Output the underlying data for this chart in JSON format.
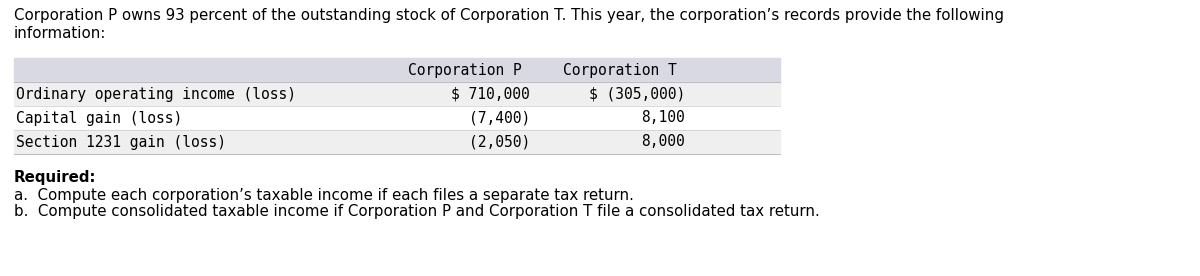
{
  "intro_text_line1": "Corporation P owns 93 percent of the outstanding stock of Corporation T. This year, the corporation’s records provide the following",
  "intro_text_line2": "information:",
  "table_header_col1": "Corporation P",
  "table_header_col2": "Corporation T",
  "table_rows": [
    [
      "Ordinary operating income (loss)",
      "$ 710,000",
      "$ (305,000)"
    ],
    [
      "Capital gain (loss)",
      "(7,400)",
      "8,100"
    ],
    [
      "Section 1231 gain (loss)",
      "(2,050)",
      "8,000"
    ]
  ],
  "header_bg_color": "#d9d9e3",
  "row_bg_even": "#efefef",
  "row_bg_odd": "#ffffff",
  "required_label": "Required:",
  "item_a": "a.  Compute each corporation’s taxable income if each files a separate tax return.",
  "item_b": "b.  Compute consolidated taxable income if Corporation P and Corporation T file a consolidated tax return.",
  "bg_color": "#ffffff",
  "text_color": "#000000",
  "mono_font": "DejaVu Sans Mono",
  "sans_font": "DejaVu Sans",
  "intro_fontsize": 10.8,
  "table_fontsize": 10.5,
  "required_fontsize": 10.8,
  "items_fontsize": 10.8
}
